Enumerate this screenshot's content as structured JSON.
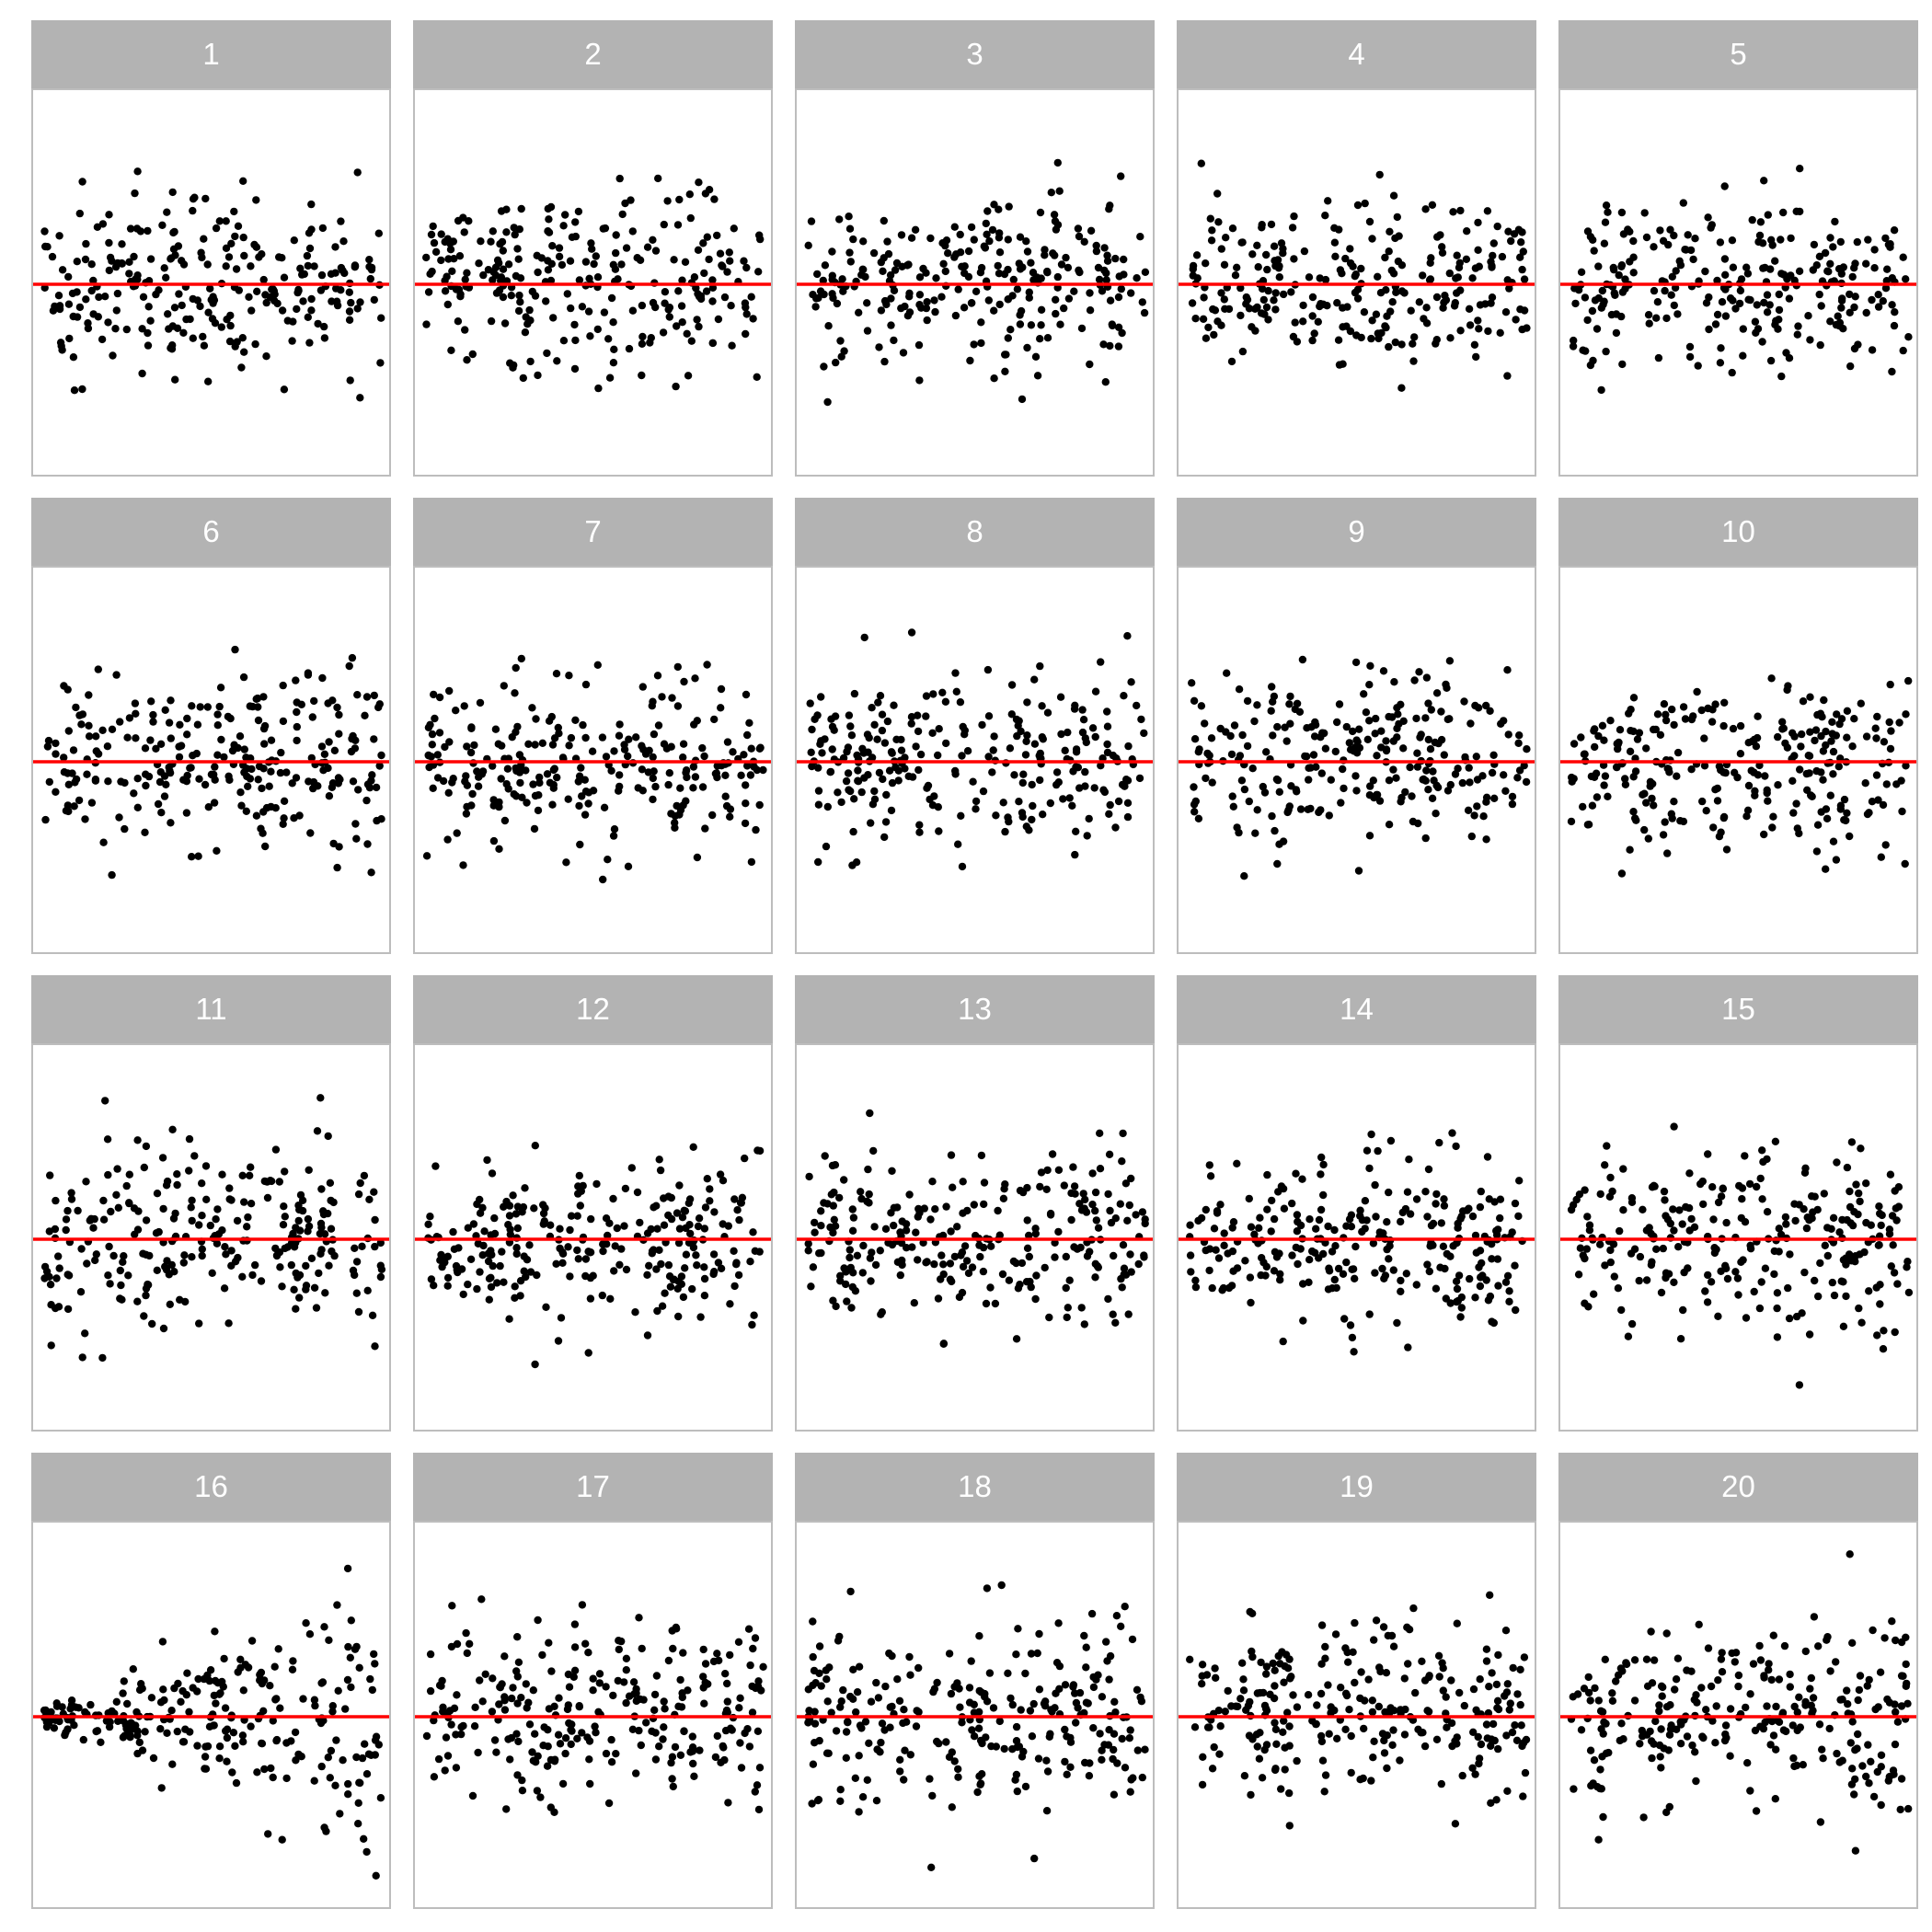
{
  "chart_data": {
    "type": "scatter",
    "layout": "facet-grid-4x5",
    "point_color": "#000000",
    "reference_line_color": "#ff0000",
    "reference_line_y": 0,
    "strip_background": "#b3b3b3",
    "strip_text_color": "#ffffff",
    "points_per_panel": 260,
    "x_range": [
      0,
      1
    ],
    "y_range": [
      -4,
      4
    ],
    "grid": false,
    "legend": "none",
    "panels": [
      {
        "label": "1",
        "pattern": "uniform",
        "seed": 101
      },
      {
        "label": "2",
        "pattern": "uniform",
        "seed": 102
      },
      {
        "label": "3",
        "pattern": "uniform",
        "seed": 103
      },
      {
        "label": "4",
        "pattern": "uniform",
        "seed": 104
      },
      {
        "label": "5",
        "pattern": "uniform",
        "seed": 105
      },
      {
        "label": "6",
        "pattern": "uniform",
        "seed": 106
      },
      {
        "label": "7",
        "pattern": "uniform",
        "seed": 107
      },
      {
        "label": "8",
        "pattern": "uniform",
        "seed": 108
      },
      {
        "label": "9",
        "pattern": "uniform",
        "seed": 109
      },
      {
        "label": "10",
        "pattern": "uniform",
        "seed": 110
      },
      {
        "label": "11",
        "pattern": "uniform",
        "seed": 111
      },
      {
        "label": "12",
        "pattern": "uniform",
        "seed": 112
      },
      {
        "label": "13",
        "pattern": "uniform",
        "seed": 113
      },
      {
        "label": "14",
        "pattern": "uniform",
        "seed": 114
      },
      {
        "label": "15",
        "pattern": "uniform",
        "seed": 115
      },
      {
        "label": "16",
        "pattern": "fan",
        "seed": 116
      },
      {
        "label": "17",
        "pattern": "uniform",
        "seed": 117
      },
      {
        "label": "18",
        "pattern": "uniform",
        "seed": 118
      },
      {
        "label": "19",
        "pattern": "uniform",
        "seed": 119
      },
      {
        "label": "20",
        "pattern": "uniform",
        "seed": 120
      }
    ]
  }
}
